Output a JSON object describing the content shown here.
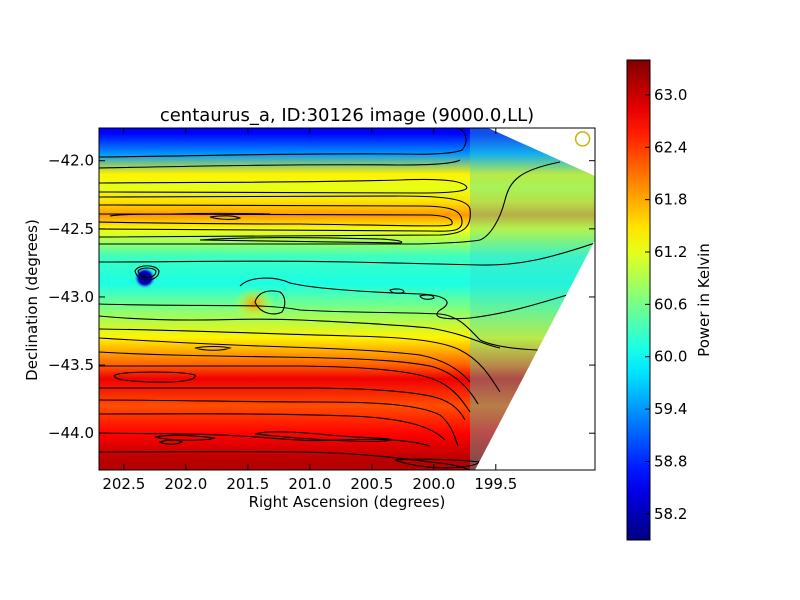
{
  "chart_data": {
    "type": "heatmap",
    "title": "centaurus_a, ID:30126 image (9000.0,LL)",
    "xlabel": "Right Ascension (degrees)",
    "ylabel": "Declination (degrees)",
    "xlim": [
      202.7,
      198.7
    ],
    "ylim": [
      -44.27,
      -41.76
    ],
    "x_ticks": [
      202.5,
      202.0,
      201.5,
      201.0,
      200.5,
      200.0,
      199.5
    ],
    "x_tick_labels": [
      "202.5",
      "202.0",
      "201.5",
      "201.0",
      "200.5",
      "200.0",
      "199.5"
    ],
    "y_ticks": [
      -42.0,
      -42.5,
      -43.0,
      -43.5,
      -44.0
    ],
    "y_tick_labels": [
      "−42.0",
      "−42.5",
      "−43.0",
      "−43.5",
      "−44.0"
    ],
    "colorbar": {
      "label": "Power in Kelvin",
      "range": [
        57.9,
        63.4
      ],
      "ticks": [
        58.2,
        58.8,
        59.4,
        60.0,
        60.6,
        61.2,
        61.8,
        62.4,
        63.0
      ],
      "tick_labels": [
        "58.2",
        "58.8",
        "59.4",
        "60.0",
        "60.6",
        "61.2",
        "61.8",
        "62.4",
        "63.0"
      ],
      "colormap": "jet"
    },
    "temperature_profile_by_declination": [
      {
        "dec": -41.8,
        "value": 58.6
      },
      {
        "dec": -41.95,
        "value": 59.4
      },
      {
        "dec": -42.1,
        "value": 61.4
      },
      {
        "dec": -42.2,
        "value": 61.2
      },
      {
        "dec": -42.3,
        "value": 61.5
      },
      {
        "dec": -42.4,
        "value": 61.9
      },
      {
        "dec": -42.5,
        "value": 61.3
      },
      {
        "dec": -42.7,
        "value": 60.3
      },
      {
        "dec": -42.9,
        "value": 60.1
      },
      {
        "dec": -43.1,
        "value": 60.7
      },
      {
        "dec": -43.3,
        "value": 61.4
      },
      {
        "dec": -43.5,
        "value": 62.2
      },
      {
        "dec": -43.6,
        "value": 62.8
      },
      {
        "dec": -43.8,
        "value": 62.3
      },
      {
        "dec": -44.0,
        "value": 62.7
      },
      {
        "dec": -44.2,
        "value": 63.1
      }
    ],
    "features": [
      {
        "name": "cold compact source",
        "ra": 202.33,
        "dec": -42.86,
        "value": 57.9
      },
      {
        "name": "warm knot",
        "ra": 201.45,
        "dec": -43.05,
        "value": 61.3
      },
      {
        "name": "beam marker",
        "ra": 198.8,
        "dec": -41.84
      }
    ]
  }
}
